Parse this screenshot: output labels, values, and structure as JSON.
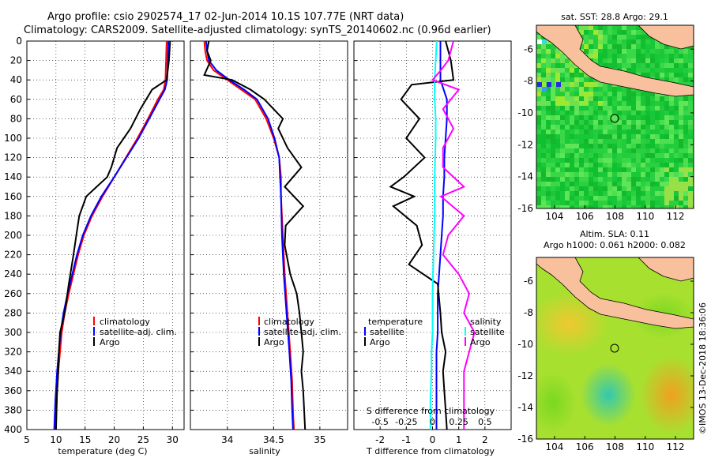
{
  "title_line1": "Argo profile: csio 2902574_17 02-Jun-2014 10.1S 107.77E (NRT data)",
  "title_line2": "Climatology: CARS2009. Satellite-adjusted climatology: synTS_20140602.nc (0.96d earlier)",
  "map1_title": "sat. SST: 28.8 Argo: 29.1",
  "map2_title1": "Altim. SLA: 0.11",
  "map2_title2": "Argo h1000: 0.061 h2000: 0.082",
  "watermark": "©IMOS 13-Dec-2018 18:36:06",
  "colors": {
    "climatology": "#ff0000",
    "satellite": "#0000ff",
    "argo": "#000000",
    "sal_argo": "#ff00ff",
    "sal_sat": "#00ffff"
  },
  "chart_data": [
    {
      "type": "line",
      "name": "temperature",
      "xlabel": "temperature (deg C)",
      "ylabel": "",
      "xlim": [
        5,
        32
      ],
      "ylim": [
        400,
        0
      ],
      "xticks": [
        "5",
        "10",
        "15",
        "20",
        "25",
        "30"
      ],
      "xtick_values": [
        5,
        10,
        15,
        20,
        25,
        30
      ],
      "yticks": [
        "0",
        "20",
        "40",
        "60",
        "80",
        "100",
        "120",
        "140",
        "160",
        "180",
        "200",
        "220",
        "240",
        "260",
        "280",
        "300",
        "320",
        "340",
        "360",
        "380",
        "400"
      ],
      "legend": [
        "climatology",
        "satellite-adj. clim.",
        "Argo"
      ],
      "series": [
        {
          "name": "climatology",
          "color": "#ff0000",
          "x": [
            29.0,
            28.9,
            28.8,
            28.5,
            27.5,
            25.8,
            24.0,
            22.0,
            20.0,
            18.0,
            16.2,
            14.8,
            13.8,
            13.0,
            12.2,
            11.5,
            11.0,
            10.7,
            10.4,
            10.1,
            9.9
          ],
          "y": [
            0,
            20,
            40,
            50,
            60,
            80,
            100,
            120,
            140,
            160,
            180,
            200,
            220,
            240,
            260,
            280,
            300,
            320,
            340,
            370,
            400
          ]
        },
        {
          "name": "satellite-adj. clim.",
          "color": "#0000ff",
          "x": [
            29.3,
            29.2,
            29.1,
            28.7,
            27.8,
            26.0,
            24.2,
            22.1,
            20.0,
            17.8,
            16.0,
            14.6,
            13.6,
            12.8,
            12.0,
            11.3,
            10.8,
            10.5,
            10.2,
            9.9,
            9.7
          ],
          "y": [
            0,
            20,
            40,
            50,
            60,
            80,
            100,
            120,
            140,
            160,
            180,
            200,
            220,
            240,
            260,
            280,
            300,
            320,
            340,
            370,
            400
          ]
        },
        {
          "name": "Argo",
          "color": "#000000",
          "x": [
            29.6,
            29.5,
            29.4,
            29.2,
            29.0,
            26.5,
            24.5,
            22.8,
            20.5,
            19.5,
            18.8,
            17.0,
            15.2,
            14.0,
            13.5,
            13.0,
            12.2,
            11.5,
            10.7,
            10.5,
            10.4,
            10.2,
            10.1,
            10.0
          ],
          "y": [
            0,
            10,
            20,
            30,
            40,
            50,
            70,
            90,
            110,
            130,
            140,
            150,
            160,
            180,
            200,
            220,
            250,
            280,
            300,
            320,
            340,
            360,
            380,
            400
          ]
        }
      ]
    },
    {
      "type": "line",
      "name": "salinity",
      "xlabel": "salinity",
      "ylabel": "",
      "xlim": [
        33.6,
        35.3
      ],
      "ylim": [
        400,
        0
      ],
      "xticks": [
        "34",
        "34.5",
        "35"
      ],
      "xtick_values": [
        34,
        34.5,
        35
      ],
      "legend": [
        "climatology",
        "satellite-adj. clim.",
        "Argo"
      ],
      "series": [
        {
          "name": "climatology",
          "color": "#ff0000",
          "x": [
            33.75,
            33.76,
            33.78,
            33.85,
            34.0,
            34.15,
            34.3,
            34.42,
            34.5,
            34.56,
            34.58,
            34.58,
            34.6,
            34.62,
            34.65,
            34.68,
            34.7,
            34.71,
            34.72
          ],
          "y": [
            0,
            10,
            20,
            30,
            40,
            50,
            60,
            80,
            100,
            120,
            140,
            160,
            200,
            240,
            280,
            320,
            350,
            380,
            400
          ]
        },
        {
          "name": "satellite-adj. clim.",
          "color": "#0000ff",
          "x": [
            33.77,
            33.78,
            33.8,
            33.88,
            34.02,
            34.18,
            34.32,
            34.44,
            34.51,
            34.56,
            34.57,
            34.58,
            34.59,
            34.61,
            34.64,
            34.67,
            34.69,
            34.7,
            34.71
          ],
          "y": [
            0,
            10,
            20,
            30,
            40,
            50,
            60,
            80,
            100,
            120,
            140,
            160,
            200,
            240,
            280,
            320,
            350,
            380,
            400
          ]
        },
        {
          "name": "Argo",
          "color": "#000000",
          "x": [
            33.8,
            33.78,
            33.82,
            33.75,
            34.05,
            34.25,
            34.4,
            34.6,
            34.55,
            34.65,
            34.8,
            34.62,
            34.82,
            34.63,
            34.62,
            34.68,
            34.75,
            34.78,
            34.8,
            34.82,
            34.8,
            34.82,
            34.84
          ],
          "y": [
            0,
            10,
            20,
            35,
            40,
            50,
            60,
            80,
            90,
            110,
            130,
            150,
            170,
            190,
            210,
            240,
            260,
            280,
            300,
            320,
            340,
            360,
            400
          ]
        }
      ]
    },
    {
      "type": "line",
      "name": "difference from climatology",
      "xlabel": "T difference from climatology",
      "xlabel2": "S difference from climatology",
      "xlim": [
        -3,
        3
      ],
      "ylim": [
        400,
        0
      ],
      "xticks": [
        "-2",
        "-1",
        "0",
        "1",
        "2"
      ],
      "xtick_values": [
        -2,
        -1,
        0,
        1,
        2
      ],
      "s_xticks": [
        "-0.5",
        "-0.25",
        "0",
        "0.25",
        "0.5"
      ],
      "s_xtick_values": [
        -0.5,
        -0.25,
        0,
        0.25,
        0.5
      ],
      "legend_temperature": [
        "temperature",
        "satellite",
        "Argo"
      ],
      "legend_salinity": [
        "salinity",
        "satellite",
        "Argo"
      ],
      "series": [
        {
          "name": "temperature satellite",
          "color": "#0000ff",
          "x": [
            0.3,
            0.3,
            0.3,
            0.55,
            0.55,
            0.5,
            0.45,
            0.45,
            0.4,
            0.4,
            0.35,
            0.3,
            0.25,
            0.2,
            0.2,
            0.2,
            0.15,
            0.15,
            0.15,
            0.15
          ],
          "y": [
            0,
            20,
            40,
            60,
            80,
            100,
            120,
            140,
            160,
            180,
            200,
            220,
            240,
            260,
            280,
            300,
            320,
            340,
            370,
            400
          ]
        },
        {
          "name": "temperature Argo",
          "color": "#000000",
          "x": [
            0.5,
            0.6,
            0.7,
            0.8,
            -0.8,
            -1.2,
            -0.5,
            -1.0,
            -0.3,
            -1.1,
            -1.6,
            -0.7,
            -1.5,
            -0.6,
            -0.4,
            -0.9,
            0.2,
            0.3,
            0.35,
            0.5,
            0.4,
            0.45,
            0.5,
            0.55
          ],
          "y": [
            0,
            10,
            20,
            40,
            45,
            60,
            80,
            100,
            120,
            140,
            150,
            160,
            170,
            190,
            210,
            230,
            250,
            280,
            300,
            320,
            340,
            360,
            380,
            400
          ]
        },
        {
          "name": "salinity satellite",
          "color": "#00ffff",
          "x": [
            0.04,
            0.03,
            0.02,
            0.02,
            0.03,
            0.03,
            0.02,
            0.02,
            0.01,
            0.0,
            0.0,
            0.0,
            -0.01,
            -0.01,
            -0.02,
            -0.02
          ],
          "y": [
            0,
            20,
            40,
            60,
            80,
            100,
            140,
            180,
            220,
            260,
            280,
            300,
            320,
            340,
            370,
            400
          ]
        },
        {
          "name": "salinity Argo",
          "color": "#ff00ff",
          "x": [
            0.2,
            0.15,
            0.08,
            0.0,
            0.25,
            0.1,
            0.2,
            0.1,
            0.1,
            0.3,
            0.08,
            0.3,
            0.15,
            0.1,
            0.25,
            0.35,
            0.3,
            0.4,
            0.35,
            0.3,
            0.3,
            0.3
          ],
          "y": [
            0,
            20,
            30,
            40,
            50,
            70,
            90,
            110,
            130,
            150,
            160,
            180,
            200,
            220,
            240,
            260,
            280,
            300,
            320,
            340,
            370,
            400
          ]
        }
      ]
    },
    {
      "type": "heatmap",
      "name": "sat. SST map",
      "title": "sat. SST: 28.8 Argo: 29.1",
      "xticks": [
        "104",
        "106",
        "108",
        "110",
        "112"
      ],
      "xtick_values": [
        104,
        106,
        108,
        110,
        112
      ],
      "yticks": [
        "-6",
        "-8",
        "-10",
        "-12",
        "-14",
        "-16"
      ],
      "ytick_values": [
        -6,
        -8,
        -10,
        -12,
        -14,
        -16
      ],
      "xlim": [
        102.8,
        113.2
      ],
      "ylim": [
        -16,
        -4.5
      ],
      "argo_position": {
        "lon": 107.77,
        "lat": -10.1
      }
    },
    {
      "type": "heatmap",
      "name": "altimetry SLA map",
      "title": "Altim. SLA: 0.11",
      "subtitle": "Argo h1000: 0.061 h2000: 0.082",
      "xticks": [
        "104",
        "106",
        "108",
        "110",
        "112"
      ],
      "xtick_values": [
        104,
        106,
        108,
        110,
        112
      ],
      "yticks": [
        "-6",
        "-8",
        "-10",
        "-12",
        "-14",
        "-16"
      ],
      "ytick_values": [
        -6,
        -8,
        -10,
        -12,
        -14,
        -16
      ],
      "xlim": [
        102.8,
        113.2
      ],
      "ylim": [
        -16,
        -4.5
      ],
      "argo_position": {
        "lon": 107.77,
        "lat": -10.1
      }
    }
  ]
}
